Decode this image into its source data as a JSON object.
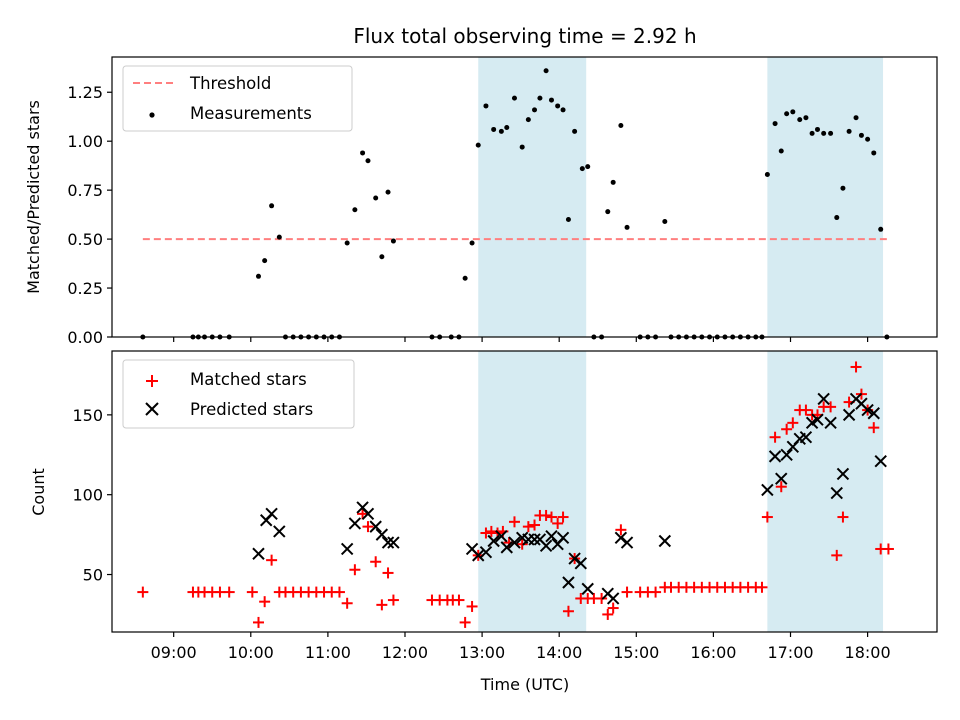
{
  "chart_data": [
    {
      "type": "scatter",
      "title": "Flux total observing time = 2.92 h",
      "xlabel": "",
      "ylabel": "Matched/Predicted stars",
      "xlim_hours": [
        8.2,
        18.9
      ],
      "ylim": [
        0,
        1.43
      ],
      "y_ticks": [
        0,
        0.25,
        0.5,
        0.75,
        1.0,
        1.25
      ],
      "y_tick_labels": [
        "0.00",
        "0.25",
        "0.50",
        "0.75",
        "1.00",
        "1.25"
      ],
      "threshold": {
        "name": "Threshold",
        "value": 0.5,
        "x_range_hours": [
          8.6,
          18.25
        ],
        "color": "#ff7f7f"
      },
      "shaded_intervals_hours": [
        [
          12.95,
          14.35
        ],
        [
          16.7,
          18.2
        ]
      ],
      "shade_color": "#add8e6",
      "legend": {
        "placement": "top-left",
        "entries": [
          "Threshold",
          "Measurements"
        ]
      },
      "series": [
        {
          "name": "Measurements",
          "marker": "dot",
          "color": "#000000",
          "points": [
            [
              8.6,
              0
            ],
            [
              9.25,
              0
            ],
            [
              9.32,
              0
            ],
            [
              9.4,
              0
            ],
            [
              9.5,
              0
            ],
            [
              9.6,
              0
            ],
            [
              9.72,
              0
            ],
            [
              10.1,
              0.31
            ],
            [
              10.18,
              0.39
            ],
            [
              10.27,
              0.67
            ],
            [
              10.37,
              0.51
            ],
            [
              10.45,
              0
            ],
            [
              10.55,
              0
            ],
            [
              10.65,
              0
            ],
            [
              10.75,
              0
            ],
            [
              10.85,
              0
            ],
            [
              10.95,
              0
            ],
            [
              11.05,
              0
            ],
            [
              11.15,
              0
            ],
            [
              11.25,
              0.48
            ],
            [
              11.35,
              0.65
            ],
            [
              11.45,
              0.94
            ],
            [
              11.52,
              0.9
            ],
            [
              11.62,
              0.71
            ],
            [
              11.7,
              0.41
            ],
            [
              11.78,
              0.74
            ],
            [
              11.85,
              0.49
            ],
            [
              12.35,
              0
            ],
            [
              12.45,
              0
            ],
            [
              12.6,
              0
            ],
            [
              12.7,
              0
            ],
            [
              12.78,
              0.3
            ],
            [
              12.87,
              0.48
            ],
            [
              12.95,
              0.98
            ],
            [
              13.05,
              1.18
            ],
            [
              13.15,
              1.06
            ],
            [
              13.25,
              1.05
            ],
            [
              13.32,
              1.07
            ],
            [
              13.42,
              1.22
            ],
            [
              13.52,
              0.97
            ],
            [
              13.6,
              1.11
            ],
            [
              13.68,
              1.16
            ],
            [
              13.75,
              1.22
            ],
            [
              13.83,
              1.36
            ],
            [
              13.9,
              1.21
            ],
            [
              13.98,
              1.18
            ],
            [
              14.05,
              1.16
            ],
            [
              14.12,
              0.6
            ],
            [
              14.2,
              1.05
            ],
            [
              14.3,
              0.86
            ],
            [
              14.37,
              0.87
            ],
            [
              14.45,
              0
            ],
            [
              14.55,
              0
            ],
            [
              14.63,
              0.64
            ],
            [
              14.7,
              0.79
            ],
            [
              14.8,
              1.08
            ],
            [
              14.88,
              0.56
            ],
            [
              15.05,
              0
            ],
            [
              15.15,
              0
            ],
            [
              15.25,
              0
            ],
            [
              15.37,
              0.59
            ],
            [
              15.45,
              0
            ],
            [
              15.55,
              0
            ],
            [
              15.65,
              0
            ],
            [
              15.75,
              0
            ],
            [
              15.85,
              0
            ],
            [
              15.95,
              0
            ],
            [
              16.05,
              0
            ],
            [
              16.15,
              0
            ],
            [
              16.25,
              0
            ],
            [
              16.35,
              0
            ],
            [
              16.45,
              0
            ],
            [
              16.55,
              0
            ],
            [
              16.63,
              0
            ],
            [
              16.7,
              0.83
            ],
            [
              16.8,
              1.09
            ],
            [
              16.88,
              0.95
            ],
            [
              16.95,
              1.14
            ],
            [
              17.03,
              1.15
            ],
            [
              17.12,
              1.11
            ],
            [
              17.2,
              1.12
            ],
            [
              17.28,
              1.04
            ],
            [
              17.35,
              1.06
            ],
            [
              17.43,
              1.04
            ],
            [
              17.52,
              1.04
            ],
            [
              17.6,
              0.61
            ],
            [
              17.68,
              0.76
            ],
            [
              17.76,
              1.05
            ],
            [
              17.85,
              1.12
            ],
            [
              17.92,
              1.03
            ],
            [
              18.0,
              1.01
            ],
            [
              18.08,
              0.94
            ],
            [
              18.17,
              0.55
            ],
            [
              18.25,
              0
            ]
          ]
        }
      ]
    },
    {
      "type": "scatter",
      "title": "",
      "xlabel": "Time (UTC)",
      "ylabel": "Count",
      "xlim_hours": [
        8.2,
        18.9
      ],
      "ylim": [
        14,
        190
      ],
      "y_ticks": [
        50,
        100,
        150
      ],
      "y_tick_labels": [
        "50",
        "100",
        "150"
      ],
      "x_ticks_hours": [
        9,
        10,
        11,
        12,
        13,
        14,
        15,
        16,
        17,
        18
      ],
      "x_tick_labels": [
        "09:00",
        "10:00",
        "11:00",
        "12:00",
        "13:00",
        "14:00",
        "15:00",
        "16:00",
        "17:00",
        "18:00"
      ],
      "shaded_intervals_hours": [
        [
          12.95,
          14.35
        ],
        [
          16.7,
          18.2
        ]
      ],
      "shade_color": "#add8e6",
      "legend": {
        "placement": "top-left",
        "entries": [
          "Matched stars",
          "Predicted stars"
        ]
      },
      "series": [
        {
          "name": "Matched stars",
          "marker": "plus",
          "color": "#ff0000",
          "points": [
            [
              8.6,
              39
            ],
            [
              9.25,
              39
            ],
            [
              9.32,
              39
            ],
            [
              9.4,
              39
            ],
            [
              9.5,
              39
            ],
            [
              9.6,
              39
            ],
            [
              9.72,
              39
            ],
            [
              10.02,
              39
            ],
            [
              10.1,
              20
            ],
            [
              10.18,
              33
            ],
            [
              10.27,
              59
            ],
            [
              10.37,
              39
            ],
            [
              10.45,
              39
            ],
            [
              10.55,
              39
            ],
            [
              10.65,
              39
            ],
            [
              10.75,
              39
            ],
            [
              10.85,
              39
            ],
            [
              10.95,
              39
            ],
            [
              11.05,
              39
            ],
            [
              11.15,
              39
            ],
            [
              11.25,
              32
            ],
            [
              11.35,
              53
            ],
            [
              11.45,
              88
            ],
            [
              11.52,
              80
            ],
            [
              11.62,
              58
            ],
            [
              11.7,
              31
            ],
            [
              11.78,
              51
            ],
            [
              11.85,
              34
            ],
            [
              12.35,
              34
            ],
            [
              12.45,
              34
            ],
            [
              12.55,
              34
            ],
            [
              12.62,
              34
            ],
            [
              12.7,
              34
            ],
            [
              12.78,
              20
            ],
            [
              12.87,
              30
            ],
            [
              12.95,
              62
            ],
            [
              13.05,
              76
            ],
            [
              13.12,
              77
            ],
            [
              13.2,
              76
            ],
            [
              13.27,
              77
            ],
            [
              13.35,
              70
            ],
            [
              13.42,
              83
            ],
            [
              13.52,
              69
            ],
            [
              13.6,
              80
            ],
            [
              13.68,
              81
            ],
            [
              13.75,
              87
            ],
            [
              13.83,
              87
            ],
            [
              13.9,
              86
            ],
            [
              13.98,
              82
            ],
            [
              14.05,
              86
            ],
            [
              14.12,
              27
            ],
            [
              14.2,
              60
            ],
            [
              14.28,
              35
            ],
            [
              14.37,
              35
            ],
            [
              14.45,
              35
            ],
            [
              14.55,
              35
            ],
            [
              14.63,
              25
            ],
            [
              14.7,
              29
            ],
            [
              14.8,
              78
            ],
            [
              14.88,
              39
            ],
            [
              15.05,
              39
            ],
            [
              15.15,
              39
            ],
            [
              15.25,
              39
            ],
            [
              15.37,
              42
            ],
            [
              15.45,
              42
            ],
            [
              15.55,
              42
            ],
            [
              15.65,
              42
            ],
            [
              15.75,
              42
            ],
            [
              15.85,
              42
            ],
            [
              15.95,
              42
            ],
            [
              16.05,
              42
            ],
            [
              16.15,
              42
            ],
            [
              16.25,
              42
            ],
            [
              16.35,
              42
            ],
            [
              16.45,
              42
            ],
            [
              16.55,
              42
            ],
            [
              16.63,
              42
            ],
            [
              16.7,
              86
            ],
            [
              16.8,
              136
            ],
            [
              16.88,
              105
            ],
            [
              16.95,
              141
            ],
            [
              17.03,
              145
            ],
            [
              17.12,
              153
            ],
            [
              17.2,
              153
            ],
            [
              17.28,
              150
            ],
            [
              17.35,
              150
            ],
            [
              17.43,
              155
            ],
            [
              17.52,
              155
            ],
            [
              17.6,
              62
            ],
            [
              17.68,
              86
            ],
            [
              17.76,
              158
            ],
            [
              17.85,
              180
            ],
            [
              17.92,
              163
            ],
            [
              18.0,
              153
            ],
            [
              18.08,
              142
            ],
            [
              18.17,
              66
            ],
            [
              18.27,
              66
            ]
          ]
        },
        {
          "name": "Predicted stars",
          "marker": "x",
          "color": "#000000",
          "points": [
            [
              10.1,
              63
            ],
            [
              10.2,
              84
            ],
            [
              10.27,
              88
            ],
            [
              10.37,
              77
            ],
            [
              11.25,
              66
            ],
            [
              11.35,
              82
            ],
            [
              11.45,
              92
            ],
            [
              11.52,
              88
            ],
            [
              11.62,
              80
            ],
            [
              11.7,
              75
            ],
            [
              11.78,
              70
            ],
            [
              11.85,
              70
            ],
            [
              12.87,
              66
            ],
            [
              12.95,
              62
            ],
            [
              13.05,
              64
            ],
            [
              13.15,
              71
            ],
            [
              13.25,
              74
            ],
            [
              13.32,
              67
            ],
            [
              13.42,
              70
            ],
            [
              13.52,
              73
            ],
            [
              13.6,
              72
            ],
            [
              13.68,
              72
            ],
            [
              13.75,
              72
            ],
            [
              13.83,
              68
            ],
            [
              13.9,
              74
            ],
            [
              13.98,
              69
            ],
            [
              14.05,
              73
            ],
            [
              14.12,
              45
            ],
            [
              14.2,
              60
            ],
            [
              14.28,
              57
            ],
            [
              14.37,
              41
            ],
            [
              14.63,
              38
            ],
            [
              14.7,
              35
            ],
            [
              14.8,
              73
            ],
            [
              14.88,
              70
            ],
            [
              15.37,
              71
            ],
            [
              16.7,
              103
            ],
            [
              16.8,
              124
            ],
            [
              16.88,
              110
            ],
            [
              16.95,
              125
            ],
            [
              17.03,
              130
            ],
            [
              17.12,
              135
            ],
            [
              17.2,
              136
            ],
            [
              17.28,
              145
            ],
            [
              17.35,
              147
            ],
            [
              17.43,
              160
            ],
            [
              17.52,
              145
            ],
            [
              17.6,
              101
            ],
            [
              17.68,
              113
            ],
            [
              17.76,
              150
            ],
            [
              17.85,
              160
            ],
            [
              17.92,
              157
            ],
            [
              18.0,
              153
            ],
            [
              18.08,
              151
            ],
            [
              18.17,
              121
            ]
          ]
        }
      ]
    }
  ]
}
